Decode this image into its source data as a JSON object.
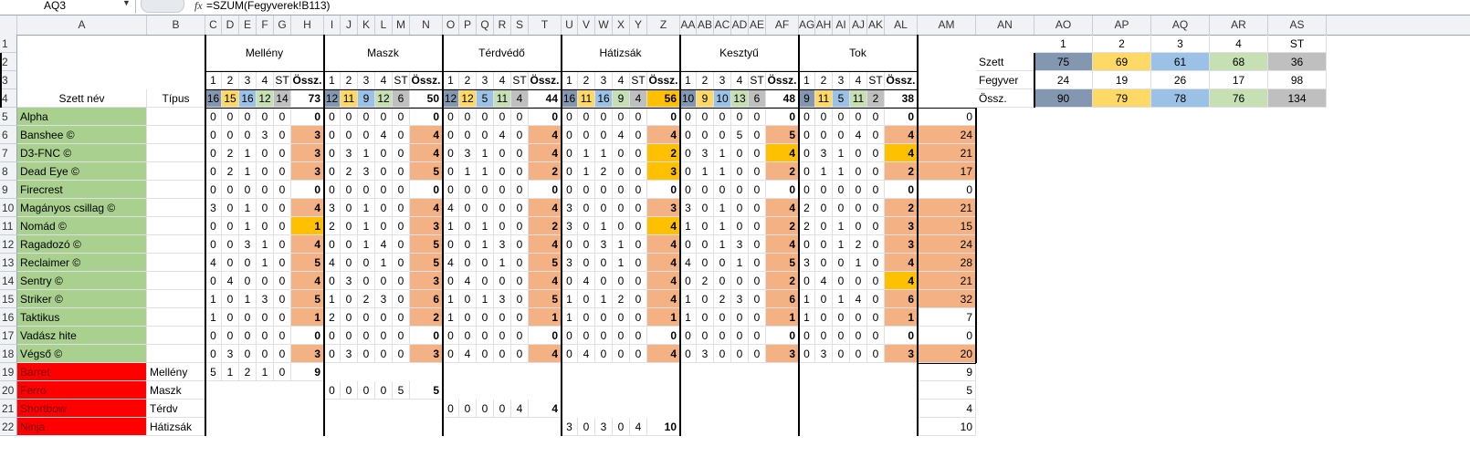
{
  "formula_bar": {
    "name_box": "AQ3",
    "fx": "fx",
    "formula": "=SZUM(Fegyverek!B113)"
  },
  "columns": [
    "A",
    "B",
    "C",
    "D",
    "E",
    "F",
    "G",
    "H",
    "I",
    "J",
    "K",
    "L",
    "M",
    "N",
    "O",
    "P",
    "Q",
    "R",
    "S",
    "T",
    "U",
    "V",
    "W",
    "X",
    "Y",
    "Z",
    "AA",
    "AB",
    "AC",
    "AD",
    "AE",
    "AF",
    "AG",
    "AH",
    "AI",
    "AJ",
    "AK",
    "AL",
    "AM",
    "AN",
    "AO",
    "AP",
    "AQ",
    "AR",
    "AS"
  ],
  "rows": [
    "1",
    "2",
    "3",
    "4",
    "5",
    "6",
    "7",
    "8",
    "9",
    "10",
    "11",
    "12",
    "13",
    "14",
    "15",
    "16",
    "17",
    "18",
    "19",
    "20",
    "21",
    "22"
  ],
  "groups": [
    {
      "name": "Mellény",
      "sub": [
        "1",
        "2",
        "3",
        "4",
        "ST",
        "Össz."
      ],
      "counts": [
        "16",
        "15",
        "16",
        "12",
        "14",
        "73"
      ]
    },
    {
      "name": "Maszk",
      "sub": [
        "1",
        "2",
        "3",
        "4",
        "ST",
        "Össz."
      ],
      "counts": [
        "12",
        "11",
        "9",
        "12",
        "6",
        "50"
      ]
    },
    {
      "name": "Térdvédő",
      "sub": [
        "1",
        "2",
        "3",
        "4",
        "ST",
        "Össz."
      ],
      "counts": [
        "12",
        "12",
        "5",
        "11",
        "4",
        "44"
      ]
    },
    {
      "name": "Hátizsák",
      "sub": [
        "1",
        "2",
        "3",
        "4",
        "ST",
        "Össz."
      ],
      "counts": [
        "16",
        "11",
        "16",
        "9",
        "4",
        "56"
      ]
    },
    {
      "name": "Kesztyű",
      "sub": [
        "1",
        "2",
        "3",
        "4",
        "ST",
        "Össz."
      ],
      "counts": [
        "10",
        "9",
        "10",
        "13",
        "6",
        "48"
      ]
    },
    {
      "name": "Tok",
      "sub": [
        "1",
        "2",
        "3",
        "4",
        "ST",
        "Össz."
      ],
      "counts": [
        "9",
        "11",
        "5",
        "11",
        "2",
        "38"
      ]
    }
  ],
  "headers": {
    "set_name": "Szett név",
    "type": "Típus"
  },
  "sets": [
    {
      "name": "Alpha",
      "type": "",
      "vals": [
        [
          "0",
          "0",
          "0",
          "0",
          "0",
          "0"
        ],
        [
          "0",
          "0",
          "0",
          "0",
          "0",
          "0"
        ],
        [
          "0",
          "0",
          "0",
          "0",
          "0",
          "0"
        ],
        [
          "0",
          "0",
          "0",
          "0",
          "0",
          "0"
        ],
        [
          "0",
          "0",
          "0",
          "0",
          "0",
          "0"
        ],
        [
          "0",
          "0",
          "0",
          "0",
          "0",
          "0"
        ]
      ],
      "total": "0"
    },
    {
      "name": "Banshee ©",
      "type": "",
      "vals": [
        [
          "0",
          "0",
          "0",
          "3",
          "0",
          "3"
        ],
        [
          "0",
          "0",
          "0",
          "4",
          "0",
          "4"
        ],
        [
          "0",
          "0",
          "0",
          "4",
          "0",
          "4"
        ],
        [
          "0",
          "0",
          "0",
          "4",
          "0",
          "4"
        ],
        [
          "0",
          "0",
          "0",
          "5",
          "0",
          "5"
        ],
        [
          "0",
          "0",
          "0",
          "4",
          "0",
          "4"
        ]
      ],
      "total": "24"
    },
    {
      "name": "D3-FNC ©",
      "type": "",
      "vals": [
        [
          "0",
          "2",
          "1",
          "0",
          "0",
          "3"
        ],
        [
          "0",
          "3",
          "1",
          "0",
          "0",
          "4"
        ],
        [
          "0",
          "3",
          "1",
          "0",
          "0",
          "4"
        ],
        [
          "0",
          "1",
          "1",
          "0",
          "0",
          "2"
        ],
        [
          "0",
          "3",
          "1",
          "0",
          "0",
          "4"
        ],
        [
          "0",
          "3",
          "1",
          "0",
          "0",
          "4"
        ]
      ],
      "total": "21"
    },
    {
      "name": "Dead Eye ©",
      "type": "",
      "vals": [
        [
          "0",
          "2",
          "1",
          "0",
          "0",
          "3"
        ],
        [
          "0",
          "2",
          "3",
          "0",
          "0",
          "5"
        ],
        [
          "0",
          "1",
          "1",
          "0",
          "0",
          "2"
        ],
        [
          "0",
          "1",
          "2",
          "0",
          "0",
          "3"
        ],
        [
          "0",
          "1",
          "1",
          "0",
          "0",
          "2"
        ],
        [
          "0",
          "1",
          "1",
          "0",
          "0",
          "2"
        ]
      ],
      "total": "17"
    },
    {
      "name": "Firecrest",
      "type": "",
      "vals": [
        [
          "0",
          "0",
          "0",
          "0",
          "0",
          "0"
        ],
        [
          "0",
          "0",
          "0",
          "0",
          "0",
          "0"
        ],
        [
          "0",
          "0",
          "0",
          "0",
          "0",
          "0"
        ],
        [
          "0",
          "0",
          "0",
          "0",
          "0",
          "0"
        ],
        [
          "0",
          "0",
          "0",
          "0",
          "0",
          "0"
        ],
        [
          "0",
          "0",
          "0",
          "0",
          "0",
          "0"
        ]
      ],
      "total": "0"
    },
    {
      "name": "Magányos csillag ©",
      "type": "",
      "vals": [
        [
          "3",
          "0",
          "1",
          "0",
          "0",
          "4"
        ],
        [
          "3",
          "0",
          "1",
          "0",
          "0",
          "4"
        ],
        [
          "4",
          "0",
          "0",
          "0",
          "0",
          "4"
        ],
        [
          "3",
          "0",
          "0",
          "0",
          "0",
          "3"
        ],
        [
          "3",
          "0",
          "1",
          "0",
          "0",
          "4"
        ],
        [
          "2",
          "0",
          "0",
          "0",
          "0",
          "2"
        ]
      ],
      "total": "21"
    },
    {
      "name": "Nomád ©",
      "type": "",
      "vals": [
        [
          "0",
          "0",
          "1",
          "0",
          "0",
          "1"
        ],
        [
          "2",
          "0",
          "1",
          "0",
          "0",
          "3"
        ],
        [
          "1",
          "0",
          "1",
          "0",
          "0",
          "2"
        ],
        [
          "3",
          "0",
          "1",
          "0",
          "0",
          "4"
        ],
        [
          "1",
          "0",
          "1",
          "0",
          "0",
          "2"
        ],
        [
          "2",
          "0",
          "1",
          "0",
          "0",
          "3"
        ]
      ],
      "total": "15"
    },
    {
      "name": "Ragadozó  ©",
      "type": "",
      "vals": [
        [
          "0",
          "0",
          "3",
          "1",
          "0",
          "4"
        ],
        [
          "0",
          "0",
          "1",
          "4",
          "0",
          "5"
        ],
        [
          "0",
          "0",
          "1",
          "3",
          "0",
          "4"
        ],
        [
          "0",
          "0",
          "3",
          "1",
          "0",
          "4"
        ],
        [
          "0",
          "0",
          "1",
          "3",
          "0",
          "4"
        ],
        [
          "0",
          "0",
          "1",
          "2",
          "0",
          "3"
        ]
      ],
      "total": "24"
    },
    {
      "name": "Reclaimer ©",
      "type": "",
      "vals": [
        [
          "4",
          "0",
          "0",
          "1",
          "0",
          "5"
        ],
        [
          "4",
          "0",
          "0",
          "1",
          "0",
          "5"
        ],
        [
          "4",
          "0",
          "0",
          "1",
          "0",
          "5"
        ],
        [
          "3",
          "0",
          "0",
          "1",
          "0",
          "4"
        ],
        [
          "4",
          "0",
          "0",
          "1",
          "0",
          "5"
        ],
        [
          "3",
          "0",
          "0",
          "1",
          "0",
          "4"
        ]
      ],
      "total": "28"
    },
    {
      "name": "Sentry ©",
      "type": "",
      "vals": [
        [
          "0",
          "4",
          "0",
          "0",
          "0",
          "4"
        ],
        [
          "0",
          "3",
          "0",
          "0",
          "0",
          "3"
        ],
        [
          "0",
          "4",
          "0",
          "0",
          "0",
          "4"
        ],
        [
          "0",
          "4",
          "0",
          "0",
          "0",
          "4"
        ],
        [
          "0",
          "2",
          "0",
          "0",
          "0",
          "2"
        ],
        [
          "0",
          "4",
          "0",
          "0",
          "0",
          "4"
        ]
      ],
      "total": "21"
    },
    {
      "name": "Striker ©",
      "type": "",
      "vals": [
        [
          "1",
          "0",
          "1",
          "3",
          "0",
          "5"
        ],
        [
          "1",
          "0",
          "2",
          "3",
          "0",
          "6"
        ],
        [
          "1",
          "0",
          "1",
          "3",
          "0",
          "5"
        ],
        [
          "1",
          "0",
          "1",
          "2",
          "0",
          "4"
        ],
        [
          "1",
          "0",
          "2",
          "3",
          "0",
          "6"
        ],
        [
          "1",
          "0",
          "1",
          "4",
          "0",
          "6"
        ]
      ],
      "total": "32"
    },
    {
      "name": "Taktikus",
      "type": "",
      "vals": [
        [
          "1",
          "0",
          "0",
          "0",
          "0",
          "1"
        ],
        [
          "2",
          "0",
          "0",
          "0",
          "0",
          "2"
        ],
        [
          "1",
          "0",
          "0",
          "0",
          "0",
          "1"
        ],
        [
          "1",
          "0",
          "0",
          "0",
          "0",
          "1"
        ],
        [
          "1",
          "0",
          "0",
          "0",
          "0",
          "1"
        ],
        [
          "1",
          "0",
          "0",
          "0",
          "0",
          "1"
        ]
      ],
      "total": "7"
    },
    {
      "name": "Vadász hite",
      "type": "",
      "vals": [
        [
          "0",
          "0",
          "0",
          "0",
          "0",
          "0"
        ],
        [
          "0",
          "0",
          "0",
          "0",
          "0",
          "0"
        ],
        [
          "0",
          "0",
          "0",
          "0",
          "0",
          "0"
        ],
        [
          "0",
          "0",
          "0",
          "0",
          "0",
          "0"
        ],
        [
          "0",
          "0",
          "0",
          "0",
          "0",
          "0"
        ],
        [
          "0",
          "0",
          "0",
          "0",
          "0",
          "0"
        ]
      ],
      "total": "0"
    },
    {
      "name": "Végső ©",
      "type": "",
      "vals": [
        [
          "0",
          "3",
          "0",
          "0",
          "0",
          "3"
        ],
        [
          "0",
          "3",
          "0",
          "0",
          "0",
          "3"
        ],
        [
          "0",
          "4",
          "0",
          "0",
          "0",
          "4"
        ],
        [
          "0",
          "4",
          "0",
          "0",
          "0",
          "4"
        ],
        [
          "0",
          "3",
          "0",
          "0",
          "0",
          "3"
        ],
        [
          "0",
          "3",
          "0",
          "0",
          "0",
          "3"
        ]
      ],
      "total": "20"
    }
  ],
  "singles": [
    {
      "name": "Barret",
      "type": "Mellény",
      "group": 0,
      "vals": [
        "5",
        "1",
        "2",
        "1",
        "0",
        "9"
      ],
      "total": "9"
    },
    {
      "name": "Ferro",
      "type": "Maszk",
      "group": 1,
      "vals": [
        "0",
        "0",
        "0",
        "0",
        "5",
        "5"
      ],
      "total": "5"
    },
    {
      "name": "Shortbow",
      "type": "Térdv",
      "group": 2,
      "vals": [
        "0",
        "0",
        "0",
        "0",
        "4",
        "4"
      ],
      "total": "4"
    },
    {
      "name": "Ninja",
      "type": "Hátizsák",
      "group": 3,
      "vals": [
        "3",
        "0",
        "3",
        "0",
        "4",
        "10"
      ],
      "total": "10"
    }
  ],
  "summary": {
    "headers": [
      "1",
      "2",
      "3",
      "4",
      "ST"
    ],
    "rows": [
      {
        "label": "Szett",
        "vals": [
          "75",
          "69",
          "61",
          "68",
          "36"
        ]
      },
      {
        "label": "Fegyver",
        "vals": [
          "24",
          "19",
          "26",
          "17",
          "98"
        ]
      },
      {
        "label": "Össz.",
        "vals": [
          "90",
          "79",
          "78",
          "76",
          "134"
        ]
      }
    ]
  },
  "colors": {
    "green": "#a9d08e",
    "red": "#ff0000",
    "salmon": "#f4b183",
    "gold": "#ffc000",
    "blue": "#8497b0",
    "yellow": "#ffd966",
    "light_blue": "#9bc2e6",
    "light_green": "#c6e0b4",
    "gray": "#bfbfbf"
  }
}
